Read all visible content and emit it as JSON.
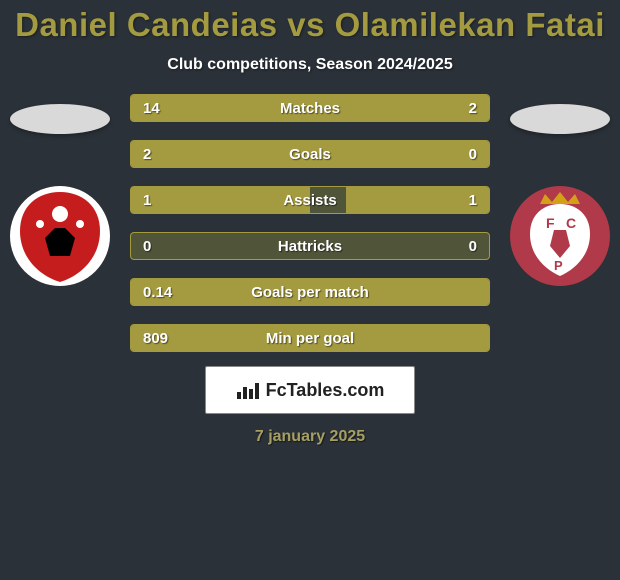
{
  "background_color": "#2a3138",
  "title": {
    "text": "Daniel Candeias vs Olamilekan Fatai",
    "color": "#a49a3f"
  },
  "subtitle": "Club competitions, Season 2024/2025",
  "left_player": {
    "ellipse_color": "#d9d9d9",
    "logo_bg": "#ffffff",
    "logo_main": "#c51d1d",
    "logo_accent": "#000000"
  },
  "right_player": {
    "ellipse_color": "#d9d9d9",
    "logo_bg": "#b03a4a",
    "logo_main": "#ffffff",
    "logo_accent": "#d4a017"
  },
  "bars": {
    "track_color": "#50553a",
    "fill_color": "#a49a3f",
    "border_color": "#a49a3f",
    "text_color": "#ffffff",
    "height": 28,
    "gap": 18,
    "items": [
      {
        "label": "Matches",
        "left_val": "14",
        "right_val": "2",
        "left_pct": 70,
        "right_pct": 30
      },
      {
        "label": "Goals",
        "left_val": "2",
        "right_val": "0",
        "left_pct": 100,
        "right_pct": 0
      },
      {
        "label": "Assists",
        "left_val": "1",
        "right_val": "1",
        "left_pct": 50,
        "right_pct": 50,
        "note": "right half rendered at ~40% width visually"
      },
      {
        "label": "Hattricks",
        "left_val": "0",
        "right_val": "0",
        "left_pct": 0,
        "right_pct": 0
      },
      {
        "label": "Goals per match",
        "left_val": "0.14",
        "right_val": "",
        "left_pct": 100,
        "right_pct": 0
      },
      {
        "label": "Min per goal",
        "left_val": "809",
        "right_val": "",
        "left_pct": 100,
        "right_pct": 0
      }
    ]
  },
  "branding": {
    "text": "FcTables.com",
    "icon_color": "#222222"
  },
  "footer_date": "7 january 2025",
  "footer_color": "#a69f63"
}
